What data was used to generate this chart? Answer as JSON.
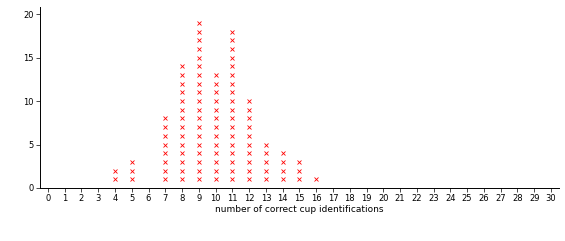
{
  "frequencies": {
    "4": 2,
    "5": 3,
    "7": 8,
    "8": 14,
    "9": 19,
    "10": 13,
    "11": 18,
    "12": 10,
    "13": 5,
    "14": 4,
    "15": 3,
    "16": 1
  },
  "x_min": 0,
  "x_max": 30,
  "y_min": 0,
  "y_max": 20,
  "y_tick_interval": 5,
  "x_tick_interval": 1,
  "xlabel": "number of correct cup identifications",
  "marker": "x",
  "marker_color": "#ff0000",
  "marker_size": 2.5,
  "marker_linewidth": 0.6,
  "background_color": "#ffffff",
  "figsize": [
    5.65,
    2.41
  ],
  "dpi": 100
}
